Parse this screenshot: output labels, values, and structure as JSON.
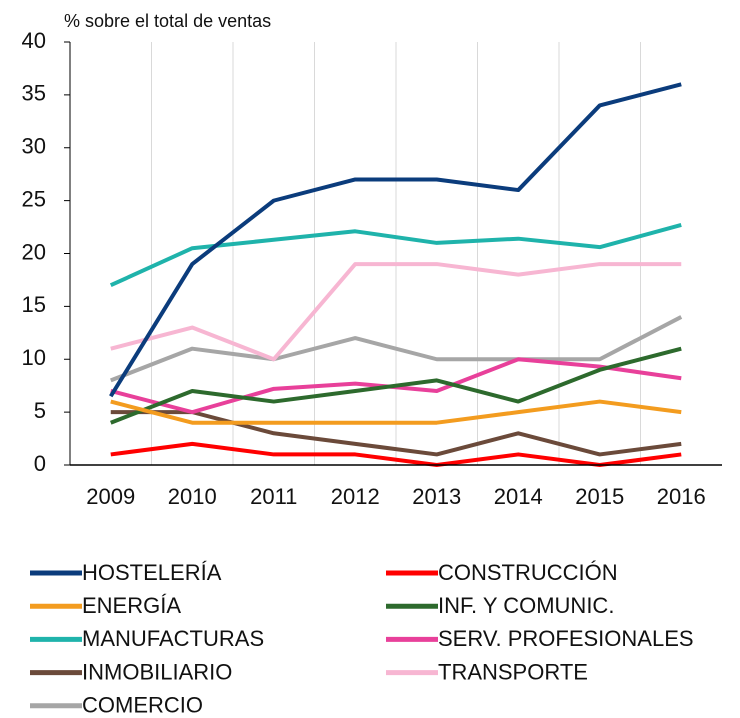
{
  "chart_data": {
    "type": "line",
    "y_axis_label": "% sobre el total de ventas",
    "categories": [
      "2009",
      "2010",
      "2011",
      "2012",
      "2013",
      "2014",
      "2015",
      "2016"
    ],
    "series": [
      {
        "name": "HOSTELERÍA",
        "color": "#0b3c7c",
        "values": [
          6.5,
          19,
          25,
          27,
          27,
          26,
          34,
          36
        ]
      },
      {
        "name": "CONSTRUCCIÓN",
        "color": "#ff0000",
        "values": [
          1,
          2,
          1,
          1,
          0,
          1,
          0,
          1
        ]
      },
      {
        "name": "ENERGÍA",
        "color": "#f39c1f",
        "values": [
          6,
          4,
          4,
          4,
          4,
          5,
          6,
          5
        ]
      },
      {
        "name": "INF. Y COMUNIC.",
        "color": "#2d6a2d",
        "values": [
          4,
          7,
          6,
          7,
          8,
          6,
          9,
          11
        ]
      },
      {
        "name": "MANUFACTURAS",
        "color": "#1fb3ab",
        "values": [
          17,
          20.5,
          21.3,
          22.1,
          21,
          21.4,
          20.6,
          22.7
        ]
      },
      {
        "name": "SERV. PROFESIONALES",
        "color": "#e8409a",
        "values": [
          7,
          5,
          7.2,
          7.7,
          7,
          10,
          9.3,
          8.2
        ]
      },
      {
        "name": "INMOBILIARIO",
        "color": "#6b4a3a",
        "values": [
          5,
          5,
          3,
          2,
          1,
          3,
          1,
          2
        ]
      },
      {
        "name": "TRANSPORTE",
        "color": "#f7b6d2",
        "values": [
          11,
          13,
          10,
          19,
          19,
          18,
          19,
          19
        ]
      },
      {
        "name": "COMERCIO",
        "color": "#a6a6a6",
        "values": [
          8,
          11,
          10,
          12,
          10,
          10,
          10,
          14
        ]
      }
    ],
    "ylim": [
      0,
      40
    ],
    "yticks": [
      0,
      5,
      10,
      15,
      20,
      25,
      30,
      35,
      40
    ],
    "grid": true
  }
}
